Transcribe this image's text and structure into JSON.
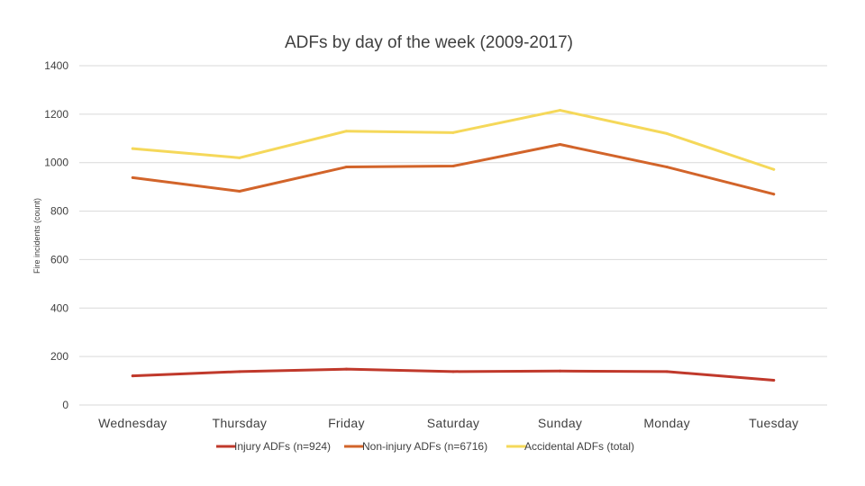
{
  "chart_data": {
    "type": "line",
    "title": "ADFs by day of the week (2009-2017)",
    "xlabel": "",
    "ylabel": "Fire incidents (count)",
    "ylim": [
      0,
      1400
    ],
    "yticks": [
      0,
      200,
      400,
      600,
      800,
      1000,
      1200,
      1400
    ],
    "grid": true,
    "legend_position": "bottom",
    "categories": [
      "Wednesday",
      "Thursday",
      "Friday",
      "Saturday",
      "Sunday",
      "Monday",
      "Tuesday"
    ],
    "series": [
      {
        "name": "Injury ADFs (n=924)",
        "color": "#c0392b",
        "values": [
          120,
          138,
          148,
          138,
          140,
          138,
          102
        ]
      },
      {
        "name": "Non-injury ADFs (n=6716)",
        "color": "#d2642a",
        "values": [
          938,
          882,
          982,
          986,
          1075,
          982,
          870
        ]
      },
      {
        "name": "Accidental ADFs (total)",
        "color": "#f5d85a",
        "values": [
          1058,
          1020,
          1130,
          1124,
          1216,
          1120,
          972
        ]
      }
    ]
  }
}
